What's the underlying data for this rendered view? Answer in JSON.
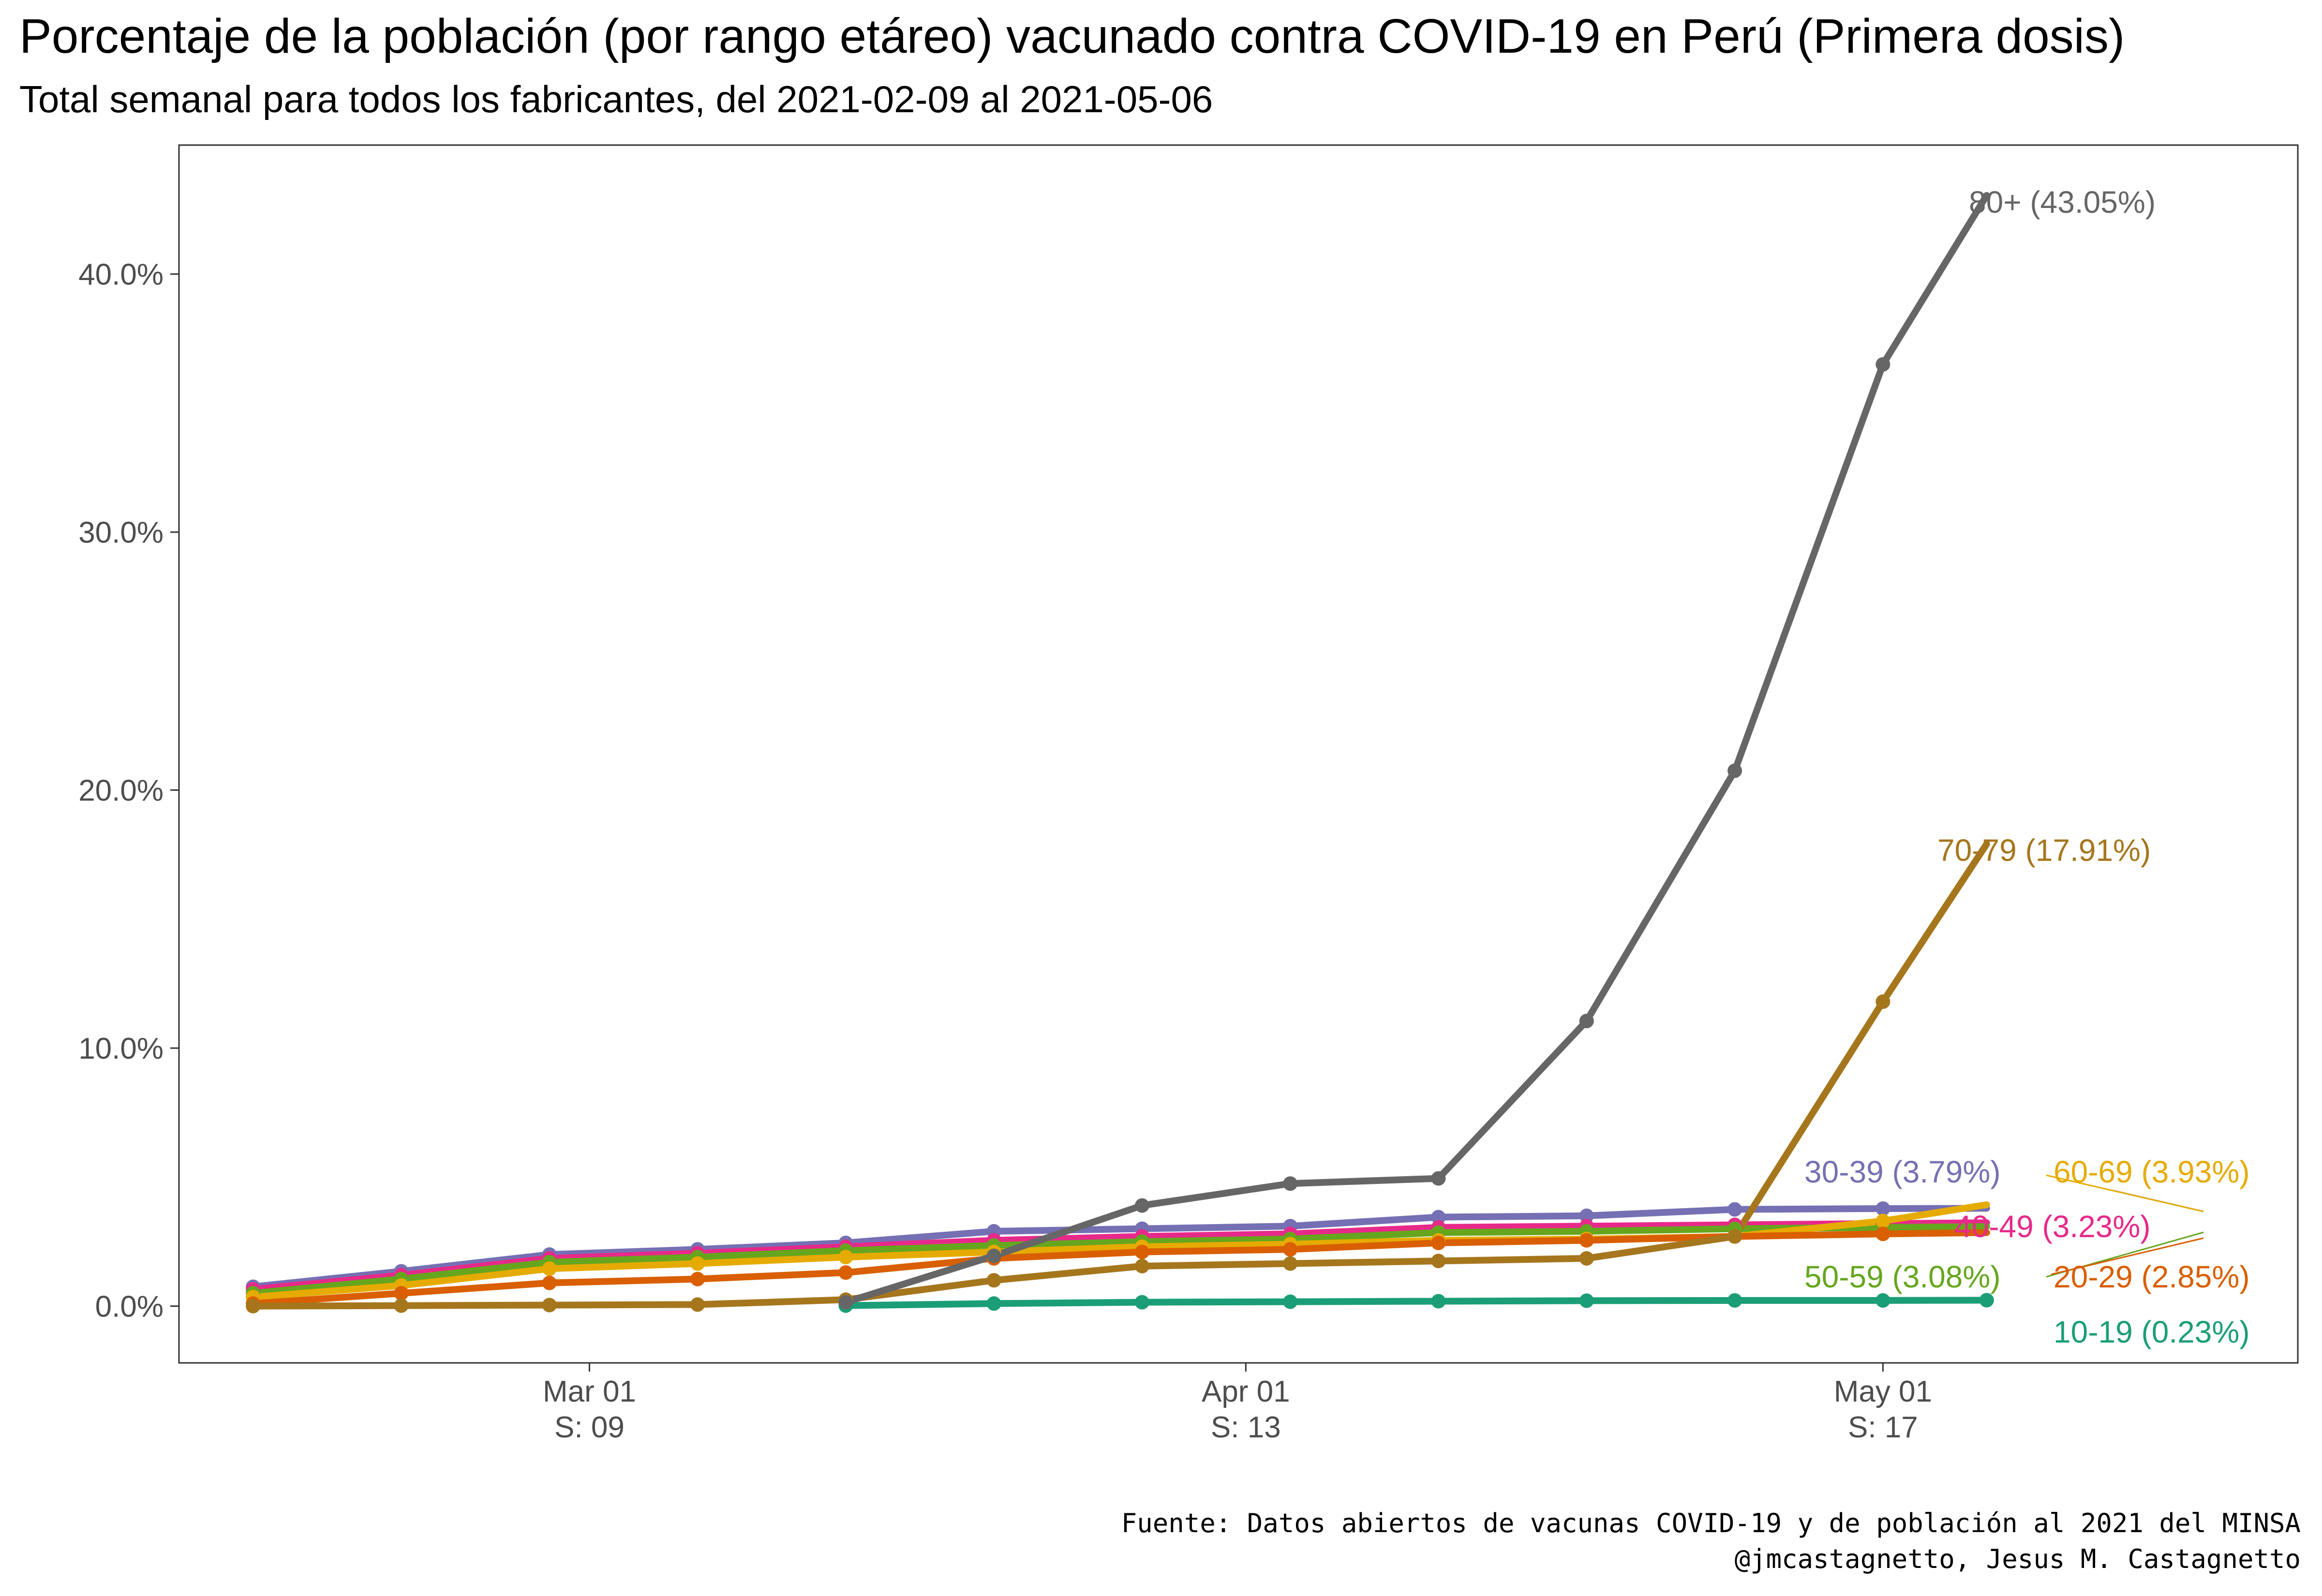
{
  "chart_data": {
    "type": "line",
    "title": "Porcentaje de la población (por rango etáreo) vacunado contra COVID-19 en Perú (Primera dosis)",
    "subtitle": "Total semanal para todos los fabricantes, del 2021-02-09 al 2021-05-06",
    "xlabel": "",
    "ylabel": "",
    "ylim": [
      -2.2,
      45
    ],
    "xlim": [
      5.5,
      19.8
    ],
    "y_ticks": [
      {
        "value": 0,
        "label": "0.0%"
      },
      {
        "value": 10,
        "label": "10.0%"
      },
      {
        "value": 20,
        "label": "20.0%"
      },
      {
        "value": 30,
        "label": "30.0%"
      },
      {
        "value": 40,
        "label": "40.0%"
      }
    ],
    "x_ticks": [
      {
        "value": 8.27,
        "label1": "Mar 01",
        "label2": "S: 09"
      },
      {
        "value": 12.7,
        "label1": "Apr 01",
        "label2": "S: 13"
      },
      {
        "value": 17.0,
        "label1": "May 01",
        "label2": "S: 17"
      }
    ],
    "x_weeks": [
      6,
      7,
      8,
      9,
      10,
      11,
      12,
      13,
      14,
      15,
      16,
      17,
      17.7
    ],
    "series": [
      {
        "name": "10-19",
        "label": "10-19 (0.23%)",
        "color": "#1b9e77",
        "values": [
          null,
          null,
          null,
          null,
          0.02,
          0.1,
          0.15,
          0.17,
          0.19,
          0.21,
          0.22,
          0.22,
          0.23
        ]
      },
      {
        "name": "30-39",
        "label": "30-39 (3.79%)",
        "color": "#7570b3",
        "values": [
          0.75,
          1.35,
          2.0,
          2.2,
          2.45,
          2.9,
          3.0,
          3.1,
          3.45,
          3.5,
          3.75,
          3.78,
          3.79
        ]
      },
      {
        "name": "40-49",
        "label": "40-49 (3.23%)",
        "color": "#e7298a",
        "values": [
          0.65,
          1.2,
          1.85,
          2.05,
          2.3,
          2.55,
          2.7,
          2.8,
          3.05,
          3.1,
          3.15,
          3.2,
          3.23
        ]
      },
      {
        "name": "50-59",
        "label": "50-59 (3.08%)",
        "color": "#66a61e",
        "values": [
          0.5,
          1.05,
          1.7,
          1.9,
          2.15,
          2.35,
          2.5,
          2.6,
          2.85,
          2.9,
          3.0,
          3.05,
          3.08
        ]
      },
      {
        "name": "60-69",
        "label": "60-69 (3.93%)",
        "color": "#e6ab02",
        "values": [
          0.35,
          0.8,
          1.45,
          1.65,
          1.9,
          2.1,
          2.3,
          2.4,
          2.55,
          2.6,
          2.7,
          3.3,
          3.93
        ]
      },
      {
        "name": "20-29",
        "label": "20-29 (2.85%)",
        "color": "#d95f02",
        "values": [
          0.1,
          0.5,
          0.9,
          1.05,
          1.3,
          1.85,
          2.1,
          2.2,
          2.45,
          2.55,
          2.7,
          2.8,
          2.85
        ]
      },
      {
        "name": "70-79",
        "label": "70-79 (17.91%)",
        "color": "#a6761d",
        "values": [
          0.0,
          0.02,
          0.04,
          0.06,
          0.25,
          1.0,
          1.55,
          1.65,
          1.75,
          1.85,
          2.7,
          11.8,
          17.91
        ]
      },
      {
        "name": "80+",
        "label": "80+ (43.05%)",
        "color": "#666666",
        "values": [
          null,
          null,
          null,
          null,
          0.15,
          1.95,
          3.9,
          4.75,
          4.95,
          11.05,
          20.75,
          36.5,
          43.05
        ]
      }
    ],
    "grid": false,
    "legend": "direct labels at line ends"
  },
  "caption": {
    "line1": "Fuente: Datos abiertos de vacunas COVID-19 y de población al 2021 del MINSA",
    "line2": "@jmcastagnetto, Jesus M. Castagnetto"
  }
}
